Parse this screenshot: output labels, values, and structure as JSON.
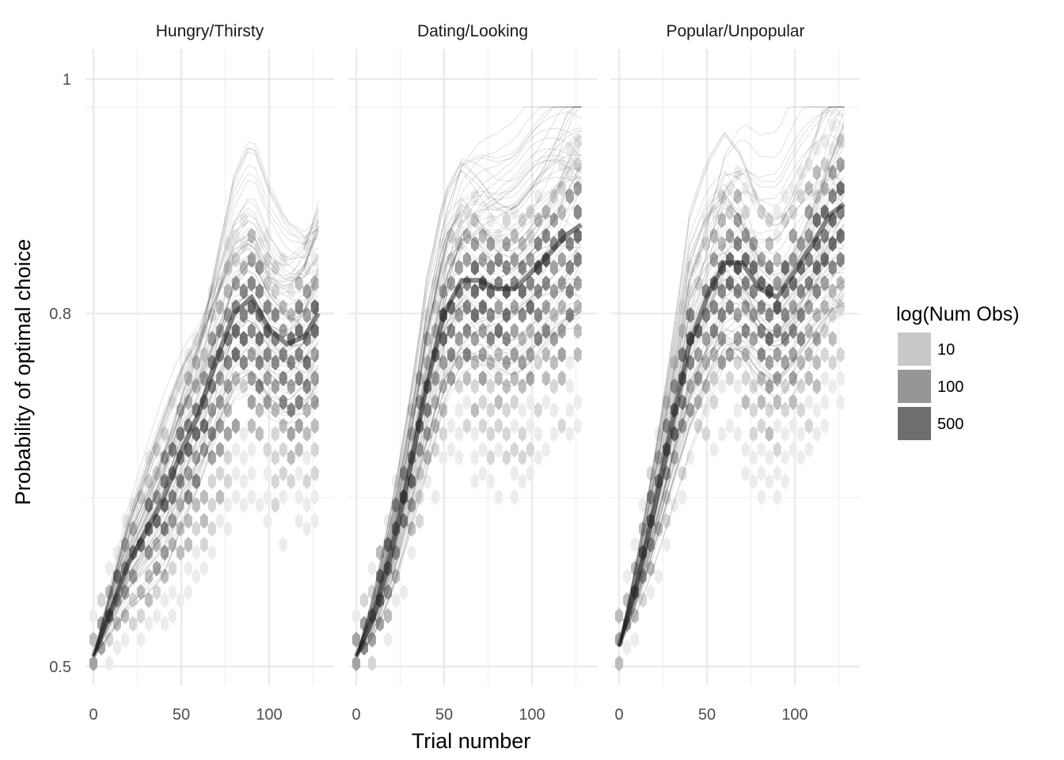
{
  "chart_data": {
    "type": "hexbin",
    "xlabel": "Trial number",
    "ylabel": "Probability of optimal choice",
    "x_ticks": [
      0,
      50,
      100
    ],
    "y_ticks": [
      0.5,
      0.8,
      1
    ],
    "y_tick_labels": [
      "0.5",
      "0.8",
      "1"
    ],
    "y_scale": "logit",
    "xlim": [
      -5,
      135
    ],
    "ylim": [
      0.49,
      1
    ],
    "grid": true,
    "legend": {
      "title": "log(Num Obs)",
      "placement": "right",
      "entries": [
        {
          "label": "10",
          "color": "#c8c8c8"
        },
        {
          "label": "100",
          "color": "#969696"
        },
        {
          "label": "500",
          "color": "#6e6e6e"
        }
      ]
    },
    "panels": [
      {
        "title": "Hungry/Thirsty",
        "curve_x": [
          0,
          10,
          20,
          30,
          40,
          50,
          60,
          70,
          80,
          90,
          100,
          110,
          120,
          128
        ],
        "curve_y": [
          0.51,
          0.555,
          0.6,
          0.63,
          0.66,
          0.7,
          0.73,
          0.77,
          0.8,
          0.81,
          0.79,
          0.78,
          0.785,
          0.8
        ]
      },
      {
        "title": "Dating/Looking",
        "curve_x": [
          0,
          10,
          20,
          30,
          40,
          50,
          60,
          70,
          80,
          90,
          100,
          110,
          120,
          128
        ],
        "curve_y": [
          0.51,
          0.55,
          0.61,
          0.68,
          0.75,
          0.8,
          0.82,
          0.82,
          0.815,
          0.815,
          0.825,
          0.835,
          0.845,
          0.85
        ]
      },
      {
        "title": "Popular/Unpopular",
        "curve_x": [
          0,
          10,
          20,
          30,
          40,
          50,
          60,
          70,
          80,
          90,
          100,
          110,
          120,
          128
        ],
        "curve_y": [
          0.52,
          0.58,
          0.65,
          0.72,
          0.78,
          0.81,
          0.83,
          0.83,
          0.815,
          0.81,
          0.825,
          0.84,
          0.855,
          0.86
        ]
      }
    ]
  }
}
